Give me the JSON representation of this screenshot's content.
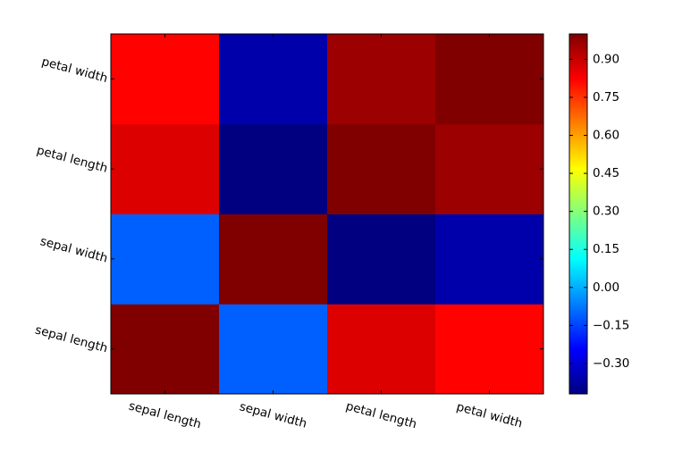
{
  "chart_data": {
    "type": "heatmap",
    "colormap": "jet",
    "x_categories": [
      "sepal length",
      "sepal width",
      "petal length",
      "petal width"
    ],
    "y_categories": [
      "sepal length",
      "sepal width",
      "petal length",
      "petal width"
    ],
    "y_order": "bottom-to-top",
    "values": [
      [
        1.0,
        -0.11,
        0.87,
        0.82
      ],
      [
        -0.11,
        1.0,
        -0.42,
        -0.36
      ],
      [
        0.87,
        -0.42,
        1.0,
        0.96
      ],
      [
        0.82,
        -0.36,
        0.96,
        1.0
      ]
    ],
    "clim": [
      -0.42,
      1.0
    ],
    "colorbar": {
      "ticks": [
        -0.3,
        -0.15,
        0.0,
        0.15,
        0.3,
        0.45,
        0.6,
        0.75,
        0.9
      ],
      "tick_labels": [
        "−0.30",
        "−0.15",
        "0.00",
        "0.15",
        "0.30",
        "0.45",
        "0.60",
        "0.75",
        "0.90"
      ]
    }
  }
}
